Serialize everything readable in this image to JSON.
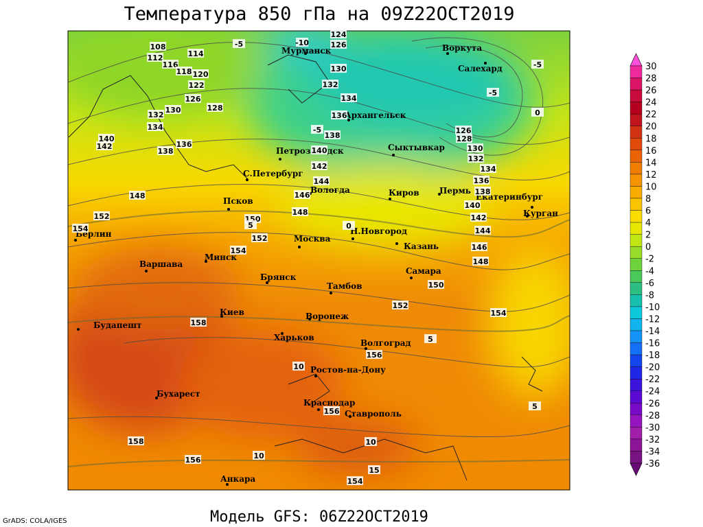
{
  "title": "Температура 850 гПа на 09Z22OCT2019",
  "model_line": "Модель GFS: 06Z22OCT2019",
  "credit": "GrADS: COLA/IGES",
  "colorbar": {
    "labels": [
      30,
      28,
      26,
      24,
      22,
      20,
      18,
      16,
      14,
      12,
      10,
      8,
      6,
      4,
      2,
      0,
      -2,
      -4,
      -6,
      -8,
      -10,
      -12,
      -14,
      -16,
      -18,
      -20,
      -22,
      -24,
      -26,
      -28,
      -30,
      -32,
      -34,
      -36
    ]
  },
  "cities": [
    "Мурманск",
    "Воркута",
    "Салехард",
    "Архангельск",
    "Петрозаводск",
    "Сыктывкар",
    "С.Петербург",
    "Вологда",
    "Киров",
    "Пермь",
    "Екатеринбург",
    "Курган",
    "Псков",
    "Берлин",
    "Москва",
    "Н.Новгород",
    "Казань",
    "Варшава",
    "Минск",
    "Брянск",
    "Тамбов",
    "Самара",
    "Киев",
    "Воронеж",
    "Будапешт",
    "Харьков",
    "Волгоград",
    "Ростов-на-Дону",
    "Бухарест",
    "Краснодар",
    "Ставрополь",
    "Анкара"
  ],
  "contour_labels": [
    108,
    112,
    116,
    114,
    118,
    120,
    122,
    126,
    128,
    130,
    132,
    134,
    136,
    138,
    140,
    142,
    148,
    152,
    154,
    150,
    152,
    154,
    158,
    158,
    156,
    154,
    156,
    156,
    154,
    152,
    150,
    148,
    146,
    144,
    142,
    140,
    138,
    136,
    134,
    132,
    130,
    128,
    126,
    124,
    126,
    130,
    132,
    134,
    136,
    138,
    140,
    142,
    144,
    146,
    148
  ],
  "temperature_labels": [
    -5,
    -5,
    -5,
    0,
    -5,
    0,
    5,
    5,
    10,
    10,
    10,
    15,
    5,
    -10
  ]
}
